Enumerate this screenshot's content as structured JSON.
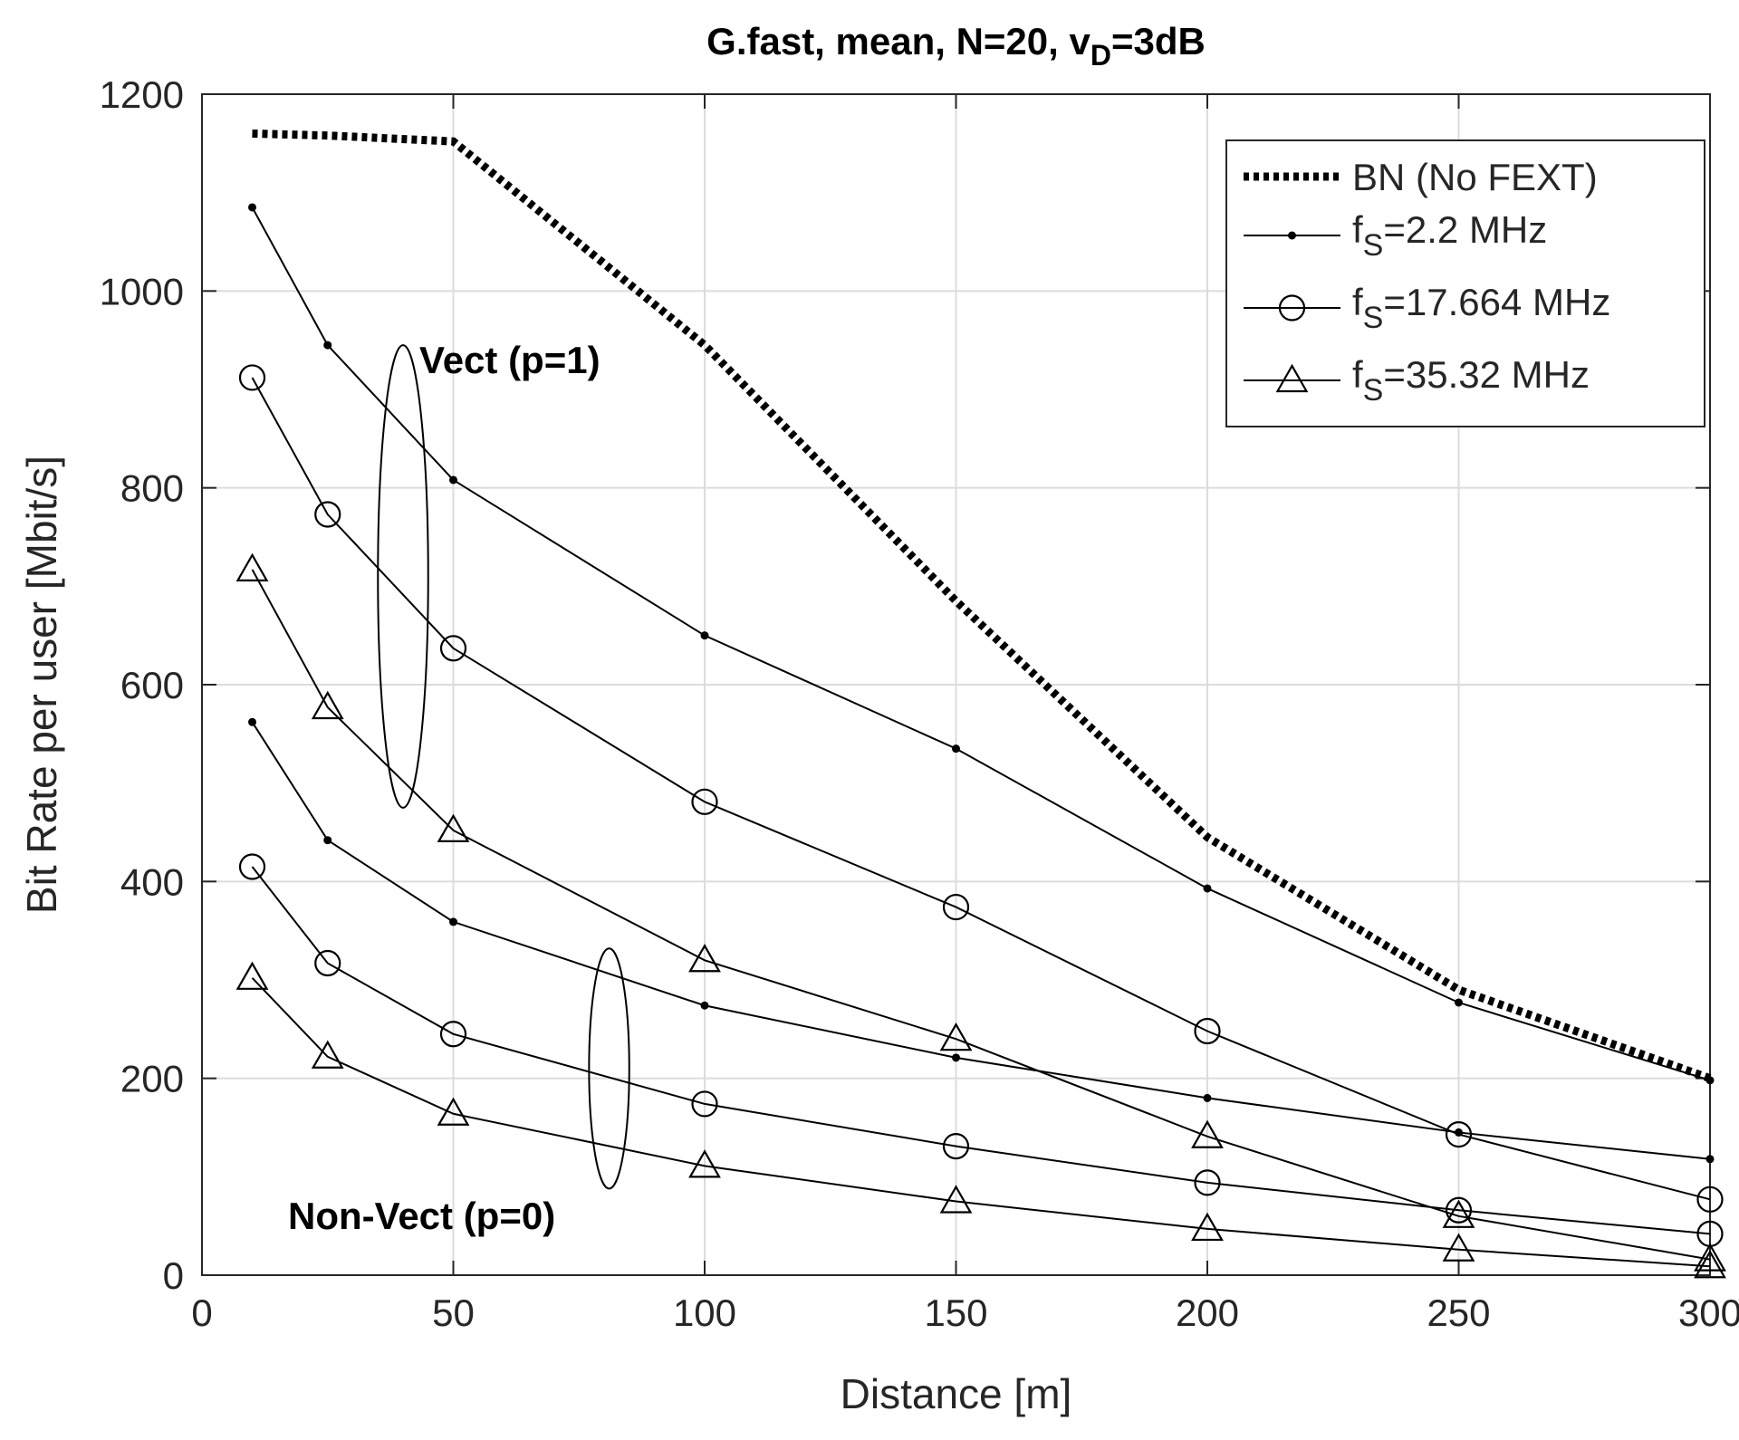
{
  "chart_data": {
    "type": "line",
    "title_main": "G.fast, mean, N=20, v",
    "title_sub": "D",
    "title_tail": "=3dB",
    "xlabel": "Distance [m]",
    "ylabel": "Bit Rate per user [Mbit/s]",
    "xlim": [
      0,
      300
    ],
    "ylim": [
      0,
      1200
    ],
    "xticks": [
      0,
      50,
      100,
      150,
      200,
      250,
      300
    ],
    "yticks": [
      0,
      200,
      400,
      600,
      800,
      1000,
      1200
    ],
    "grid": true,
    "legend_position": "top-right",
    "series": [
      {
        "name": "BN (No FEXT)",
        "group": "bn",
        "marker": "none",
        "style": "dotted",
        "x": [
          10,
          25,
          50,
          100,
          150,
          200,
          250,
          300
        ],
        "y": [
          1160,
          1158,
          1152,
          945,
          685,
          445,
          290,
          200
        ]
      },
      {
        "name": "fS=2.2 MHz (p=1)",
        "group": "Vect (p=1)",
        "marker": "dot",
        "x": [
          10,
          25,
          50,
          100,
          150,
          200,
          250,
          300
        ],
        "y": [
          1085,
          945,
          808,
          650,
          535,
          393,
          277,
          198
        ]
      },
      {
        "name": "fS=17.664 MHz (p=1)",
        "group": "Vect (p=1)",
        "marker": "circle",
        "x": [
          10,
          25,
          50,
          100,
          150,
          200,
          250,
          300
        ],
        "y": [
          912,
          773,
          637,
          481,
          374,
          248,
          143,
          77
        ]
      },
      {
        "name": "fS=35.32 MHz (p=1)",
        "group": "Vect (p=1)",
        "marker": "triangle",
        "x": [
          10,
          25,
          50,
          100,
          150,
          200,
          250,
          300
        ],
        "y": [
          717,
          577,
          452,
          320,
          240,
          141,
          60,
          16
        ]
      },
      {
        "name": "fS=2.2 MHz (p=0)",
        "group": "Non-Vect (p=0)",
        "marker": "dot",
        "x": [
          10,
          25,
          50,
          100,
          150,
          200,
          250,
          300
        ],
        "y": [
          562,
          442,
          359,
          274,
          221,
          180,
          145,
          118
        ]
      },
      {
        "name": "fS=17.664 MHz (p=0)",
        "group": "Non-Vect (p=0)",
        "marker": "circle",
        "x": [
          10,
          25,
          50,
          100,
          150,
          200,
          250,
          300
        ],
        "y": [
          415,
          317,
          245,
          174,
          131,
          94,
          66,
          42
        ]
      },
      {
        "name": "fS=35.32 MHz (p=0)",
        "group": "Non-Vect (p=0)",
        "marker": "triangle",
        "x": [
          10,
          25,
          50,
          100,
          150,
          200,
          250,
          300
        ],
        "y": [
          302,
          222,
          164,
          111,
          75,
          47,
          26,
          9
        ]
      }
    ],
    "legend": [
      {
        "label": "BN (No FEXT)",
        "marker": "none",
        "style": "dotted"
      },
      {
        "label_main": "f",
        "label_sub": "S",
        "label_tail": "=2.2 MHz",
        "marker": "dot"
      },
      {
        "label_main": "f",
        "label_sub": "S",
        "label_tail": "=17.664 MHz",
        "marker": "circle"
      },
      {
        "label_main": "f",
        "label_sub": "S",
        "label_tail": "=35.32 MHz",
        "marker": "triangle"
      }
    ],
    "annotations": [
      {
        "text": "Vect (p=1)",
        "ellipse_center": [
          40,
          710
        ],
        "ellipse_rx": 5,
        "ellipse_ry": 235
      },
      {
        "text": "Non-Vect (p=0)",
        "ellipse_center": [
          81,
          210
        ],
        "ellipse_rx": 4,
        "ellipse_ry": 122
      }
    ]
  }
}
